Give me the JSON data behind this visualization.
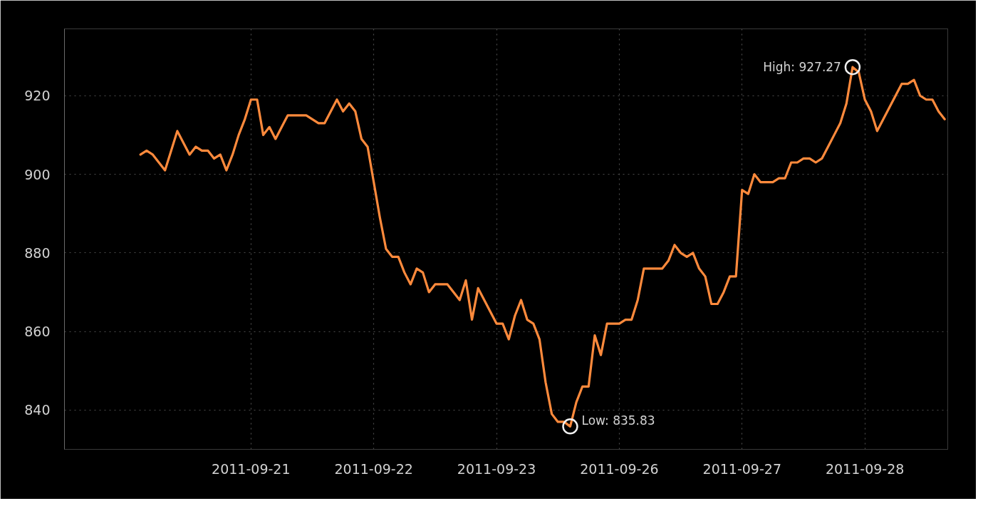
{
  "chart_data": {
    "type": "line",
    "categories": [
      null,
      null,
      null,
      null,
      null,
      null,
      null,
      null,
      null,
      null,
      null,
      null,
      null,
      null,
      null,
      null,
      null,
      null,
      "2011-09-21",
      null,
      null,
      null,
      null,
      null,
      null,
      null,
      null,
      null,
      null,
      null,
      null,
      null,
      null,
      null,
      null,
      null,
      null,
      null,
      "2011-09-22",
      null,
      null,
      null,
      null,
      null,
      null,
      null,
      null,
      null,
      null,
      null,
      null,
      null,
      null,
      null,
      null,
      null,
      null,
      null,
      "2011-09-23",
      null,
      null,
      null,
      null,
      null,
      null,
      null,
      null,
      null,
      null,
      null,
      null,
      null,
      null,
      null,
      null,
      null,
      null,
      null,
      "2011-09-26",
      null,
      null,
      null,
      null,
      null,
      null,
      null,
      null,
      null,
      null,
      null,
      null,
      null,
      null,
      null,
      null,
      null,
      null,
      null,
      "2011-09-27",
      null,
      null,
      null,
      null,
      null,
      null,
      null,
      null,
      null,
      null,
      null,
      null,
      null,
      null,
      null,
      null,
      null,
      null,
      null,
      "2011-09-28",
      null,
      null,
      null,
      null,
      null,
      null,
      null,
      null,
      null,
      null,
      null,
      null,
      null
    ],
    "series": [
      {
        "color": "#ff8a3c",
        "values": [
          905,
          906,
          905,
          903,
          901,
          906,
          911,
          908,
          905,
          907,
          906,
          906,
          904,
          905,
          901,
          905,
          910,
          914,
          919,
          919,
          910,
          912,
          909,
          912,
          915,
          915,
          915,
          915,
          914,
          913,
          913,
          916,
          919,
          916,
          918,
          916,
          909,
          907,
          898,
          889,
          881,
          879,
          879,
          875,
          872,
          876,
          875,
          870,
          872,
          872,
          872,
          870,
          868,
          873,
          863,
          871,
          868,
          865,
          862,
          862,
          858,
          864,
          868,
          863,
          862,
          858,
          847,
          839,
          837,
          837,
          835.83,
          842,
          846,
          846,
          859,
          854,
          862,
          862,
          862,
          863,
          863,
          868,
          876,
          876,
          876,
          876,
          878,
          882,
          880,
          879,
          880,
          876,
          874,
          867,
          867,
          870,
          874,
          874,
          896,
          895,
          900,
          898,
          898,
          898,
          899,
          899,
          903,
          903,
          904,
          904,
          903,
          904,
          907,
          910,
          913,
          918,
          927.27,
          926,
          919,
          916,
          911,
          914,
          917,
          920,
          923,
          923,
          924,
          920,
          919,
          919,
          916,
          914
        ]
      }
    ],
    "ylim": [
      830,
      937
    ],
    "yticks": [
      840,
      860,
      880,
      900,
      920
    ],
    "grid": true,
    "line_style": "solid",
    "annotations": [
      "High: 927.27",
      "Low: 835.83"
    ]
  }
}
